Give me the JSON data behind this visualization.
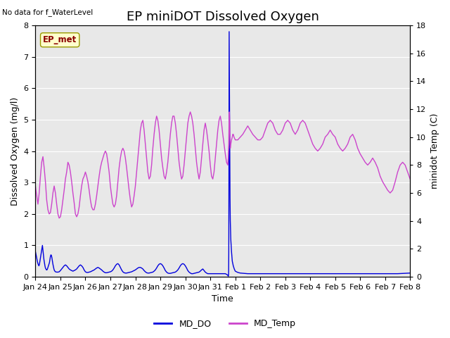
{
  "title": "EP miniDOT Dissolved Oxygen",
  "ylabel_left": "Dissolved Oxygen (mg/l)",
  "ylabel_right": "minidot Temp (C)",
  "xlabel": "Time",
  "ylim_left": [
    0,
    8.0
  ],
  "ylim_right": [
    0,
    18
  ],
  "yticks_left": [
    0.0,
    1.0,
    2.0,
    3.0,
    4.0,
    5.0,
    6.0,
    7.0,
    8.0
  ],
  "yticks_right": [
    0,
    2,
    4,
    6,
    8,
    10,
    12,
    14,
    16,
    18
  ],
  "annotation_text": "No data for f_WaterLevel",
  "box_label": "EP_met",
  "legend_entries": [
    "MD_DO",
    "MD_Temp"
  ],
  "do_color": "#0000dd",
  "temp_color": "#cc44cc",
  "background_color": "#e8e8e8",
  "do_linewidth": 1.0,
  "temp_linewidth": 1.0,
  "title_fontsize": 13,
  "axis_fontsize": 9,
  "tick_fontsize": 8,
  "x_start_days": 0,
  "x_end_days": 15.0,
  "xtick_labels": [
    "Jan 24",
    "Jan 25",
    "Jan 26",
    "Jan 27",
    "Jan 28",
    "Jan 29",
    "Jan 30",
    "Jan 31",
    "Feb 1",
    "Feb 2",
    "Feb 3",
    "Feb 4",
    "Feb 5",
    "Feb 6",
    "Feb 7",
    "Feb 8"
  ],
  "xtick_positions": [
    0,
    1,
    2,
    3,
    4,
    5,
    6,
    7,
    8,
    9,
    10,
    11,
    12,
    13,
    14,
    15
  ],
  "do_data": [
    [
      0.0,
      0.8
    ],
    [
      0.02,
      0.72
    ],
    [
      0.04,
      0.65
    ],
    [
      0.06,
      0.55
    ],
    [
      0.08,
      0.48
    ],
    [
      0.1,
      0.42
    ],
    [
      0.12,
      0.38
    ],
    [
      0.14,
      0.35
    ],
    [
      0.16,
      0.4
    ],
    [
      0.18,
      0.5
    ],
    [
      0.2,
      0.6
    ],
    [
      0.22,
      0.7
    ],
    [
      0.24,
      0.8
    ],
    [
      0.26,
      0.9
    ],
    [
      0.28,
      1.0
    ],
    [
      0.3,
      0.85
    ],
    [
      0.32,
      0.7
    ],
    [
      0.34,
      0.55
    ],
    [
      0.36,
      0.45
    ],
    [
      0.38,
      0.35
    ],
    [
      0.4,
      0.28
    ],
    [
      0.42,
      0.25
    ],
    [
      0.44,
      0.22
    ],
    [
      0.46,
      0.22
    ],
    [
      0.48,
      0.25
    ],
    [
      0.5,
      0.3
    ],
    [
      0.52,
      0.35
    ],
    [
      0.54,
      0.4
    ],
    [
      0.56,
      0.45
    ],
    [
      0.58,
      0.55
    ],
    [
      0.6,
      0.65
    ],
    [
      0.62,
      0.7
    ],
    [
      0.64,
      0.68
    ],
    [
      0.66,
      0.6
    ],
    [
      0.68,
      0.5
    ],
    [
      0.7,
      0.4
    ],
    [
      0.72,
      0.32
    ],
    [
      0.74,
      0.25
    ],
    [
      0.76,
      0.2
    ],
    [
      0.78,
      0.18
    ],
    [
      0.8,
      0.16
    ],
    [
      0.85,
      0.15
    ],
    [
      0.9,
      0.15
    ],
    [
      0.95,
      0.16
    ],
    [
      1.0,
      0.2
    ],
    [
      1.05,
      0.25
    ],
    [
      1.1,
      0.3
    ],
    [
      1.15,
      0.35
    ],
    [
      1.2,
      0.38
    ],
    [
      1.25,
      0.35
    ],
    [
      1.3,
      0.3
    ],
    [
      1.35,
      0.25
    ],
    [
      1.4,
      0.22
    ],
    [
      1.45,
      0.2
    ],
    [
      1.5,
      0.18
    ],
    [
      1.55,
      0.2
    ],
    [
      1.6,
      0.22
    ],
    [
      1.65,
      0.25
    ],
    [
      1.7,
      0.3
    ],
    [
      1.75,
      0.35
    ],
    [
      1.8,
      0.38
    ],
    [
      1.85,
      0.35
    ],
    [
      1.9,
      0.3
    ],
    [
      1.95,
      0.22
    ],
    [
      2.0,
      0.16
    ],
    [
      2.05,
      0.14
    ],
    [
      2.1,
      0.14
    ],
    [
      2.15,
      0.15
    ],
    [
      2.2,
      0.16
    ],
    [
      2.25,
      0.18
    ],
    [
      2.3,
      0.2
    ],
    [
      2.35,
      0.22
    ],
    [
      2.4,
      0.25
    ],
    [
      2.45,
      0.28
    ],
    [
      2.5,
      0.3
    ],
    [
      2.55,
      0.28
    ],
    [
      2.6,
      0.25
    ],
    [
      2.65,
      0.22
    ],
    [
      2.7,
      0.18
    ],
    [
      2.75,
      0.15
    ],
    [
      2.8,
      0.13
    ],
    [
      2.85,
      0.13
    ],
    [
      2.9,
      0.14
    ],
    [
      2.95,
      0.15
    ],
    [
      3.0,
      0.16
    ],
    [
      3.05,
      0.18
    ],
    [
      3.1,
      0.22
    ],
    [
      3.15,
      0.28
    ],
    [
      3.2,
      0.35
    ],
    [
      3.25,
      0.4
    ],
    [
      3.3,
      0.42
    ],
    [
      3.35,
      0.38
    ],
    [
      3.4,
      0.3
    ],
    [
      3.45,
      0.22
    ],
    [
      3.5,
      0.16
    ],
    [
      3.55,
      0.13
    ],
    [
      3.6,
      0.12
    ],
    [
      3.65,
      0.12
    ],
    [
      3.7,
      0.13
    ],
    [
      3.75,
      0.14
    ],
    [
      3.8,
      0.15
    ],
    [
      3.85,
      0.16
    ],
    [
      3.9,
      0.18
    ],
    [
      3.95,
      0.2
    ],
    [
      4.0,
      0.22
    ],
    [
      4.05,
      0.25
    ],
    [
      4.1,
      0.28
    ],
    [
      4.15,
      0.3
    ],
    [
      4.2,
      0.3
    ],
    [
      4.25,
      0.28
    ],
    [
      4.3,
      0.25
    ],
    [
      4.35,
      0.2
    ],
    [
      4.4,
      0.16
    ],
    [
      4.45,
      0.13
    ],
    [
      4.5,
      0.12
    ],
    [
      4.55,
      0.12
    ],
    [
      4.6,
      0.13
    ],
    [
      4.65,
      0.14
    ],
    [
      4.7,
      0.15
    ],
    [
      4.75,
      0.18
    ],
    [
      4.8,
      0.22
    ],
    [
      4.85,
      0.28
    ],
    [
      4.9,
      0.35
    ],
    [
      4.95,
      0.4
    ],
    [
      5.0,
      0.42
    ],
    [
      5.05,
      0.4
    ],
    [
      5.1,
      0.35
    ],
    [
      5.15,
      0.28
    ],
    [
      5.2,
      0.2
    ],
    [
      5.25,
      0.15
    ],
    [
      5.3,
      0.12
    ],
    [
      5.35,
      0.11
    ],
    [
      5.4,
      0.11
    ],
    [
      5.45,
      0.12
    ],
    [
      5.5,
      0.13
    ],
    [
      5.55,
      0.14
    ],
    [
      5.6,
      0.15
    ],
    [
      5.65,
      0.18
    ],
    [
      5.7,
      0.22
    ],
    [
      5.75,
      0.28
    ],
    [
      5.8,
      0.35
    ],
    [
      5.85,
      0.4
    ],
    [
      5.9,
      0.42
    ],
    [
      5.95,
      0.4
    ],
    [
      6.0,
      0.35
    ],
    [
      6.05,
      0.28
    ],
    [
      6.1,
      0.2
    ],
    [
      6.15,
      0.15
    ],
    [
      6.2,
      0.12
    ],
    [
      6.25,
      0.1
    ],
    [
      6.3,
      0.1
    ],
    [
      6.35,
      0.11
    ],
    [
      6.4,
      0.12
    ],
    [
      6.45,
      0.13
    ],
    [
      6.5,
      0.14
    ],
    [
      6.55,
      0.15
    ],
    [
      6.6,
      0.18
    ],
    [
      6.65,
      0.22
    ],
    [
      6.7,
      0.25
    ],
    [
      6.75,
      0.2
    ],
    [
      6.8,
      0.15
    ],
    [
      6.85,
      0.12
    ],
    [
      6.9,
      0.1
    ],
    [
      6.95,
      0.1
    ],
    [
      7.0,
      0.1
    ],
    [
      7.05,
      0.1
    ],
    [
      7.1,
      0.1
    ],
    [
      7.15,
      0.1
    ],
    [
      7.2,
      0.1
    ],
    [
      7.25,
      0.1
    ],
    [
      7.3,
      0.1
    ],
    [
      7.35,
      0.1
    ],
    [
      7.4,
      0.1
    ],
    [
      7.45,
      0.1
    ],
    [
      7.5,
      0.1
    ],
    [
      7.55,
      0.1
    ],
    [
      7.6,
      0.1
    ],
    [
      7.65,
      0.08
    ],
    [
      7.7,
      0.05
    ],
    [
      7.72,
      0.02
    ],
    [
      7.73,
      0.05
    ],
    [
      7.735,
      0.2
    ],
    [
      7.74,
      0.8
    ],
    [
      7.745,
      2.5
    ],
    [
      7.75,
      5.5
    ],
    [
      7.755,
      7.8
    ],
    [
      7.76,
      7.0
    ],
    [
      7.77,
      5.0
    ],
    [
      7.78,
      3.5
    ],
    [
      7.79,
      2.5
    ],
    [
      7.8,
      1.8
    ],
    [
      7.82,
      1.2
    ],
    [
      7.85,
      0.8
    ],
    [
      7.88,
      0.5
    ],
    [
      7.92,
      0.35
    ],
    [
      7.96,
      0.25
    ],
    [
      8.0,
      0.18
    ],
    [
      8.1,
      0.14
    ],
    [
      8.2,
      0.12
    ],
    [
      8.5,
      0.1
    ],
    [
      9.0,
      0.1
    ],
    [
      9.5,
      0.1
    ],
    [
      10.0,
      0.1
    ],
    [
      10.5,
      0.1
    ],
    [
      11.0,
      0.1
    ],
    [
      11.5,
      0.1
    ],
    [
      12.0,
      0.1
    ],
    [
      12.5,
      0.1
    ],
    [
      13.0,
      0.1
    ],
    [
      13.5,
      0.1
    ],
    [
      14.0,
      0.1
    ],
    [
      14.5,
      0.1
    ],
    [
      15.0,
      0.12
    ]
  ],
  "temp_data": [
    [
      0.0,
      6.5
    ],
    [
      0.05,
      5.8
    ],
    [
      0.1,
      5.2
    ],
    [
      0.15,
      6.0
    ],
    [
      0.2,
      7.2
    ],
    [
      0.25,
      8.2
    ],
    [
      0.3,
      8.6
    ],
    [
      0.35,
      7.8
    ],
    [
      0.4,
      6.8
    ],
    [
      0.45,
      5.5
    ],
    [
      0.5,
      4.8
    ],
    [
      0.55,
      4.5
    ],
    [
      0.6,
      4.6
    ],
    [
      0.65,
      5.2
    ],
    [
      0.7,
      6.0
    ],
    [
      0.75,
      6.5
    ],
    [
      0.8,
      6.0
    ],
    [
      0.85,
      5.2
    ],
    [
      0.9,
      4.5
    ],
    [
      0.95,
      4.2
    ],
    [
      1.0,
      4.3
    ],
    [
      1.05,
      4.8
    ],
    [
      1.1,
      5.5
    ],
    [
      1.15,
      6.2
    ],
    [
      1.2,
      7.0
    ],
    [
      1.25,
      7.5
    ],
    [
      1.3,
      8.2
    ],
    [
      1.35,
      8.0
    ],
    [
      1.4,
      7.5
    ],
    [
      1.45,
      6.8
    ],
    [
      1.5,
      6.0
    ],
    [
      1.55,
      5.3
    ],
    [
      1.6,
      4.5
    ],
    [
      1.65,
      4.3
    ],
    [
      1.7,
      4.5
    ],
    [
      1.75,
      5.0
    ],
    [
      1.8,
      5.8
    ],
    [
      1.85,
      6.5
    ],
    [
      1.9,
      7.0
    ],
    [
      1.95,
      7.2
    ],
    [
      2.0,
      7.5
    ],
    [
      2.05,
      7.2
    ],
    [
      2.1,
      6.8
    ],
    [
      2.15,
      6.2
    ],
    [
      2.2,
      5.5
    ],
    [
      2.25,
      5.0
    ],
    [
      2.3,
      4.8
    ],
    [
      2.35,
      4.8
    ],
    [
      2.4,
      5.2
    ],
    [
      2.45,
      5.8
    ],
    [
      2.5,
      6.5
    ],
    [
      2.55,
      7.2
    ],
    [
      2.6,
      7.8
    ],
    [
      2.65,
      8.2
    ],
    [
      2.7,
      8.5
    ],
    [
      2.75,
      8.8
    ],
    [
      2.8,
      9.0
    ],
    [
      2.85,
      8.8
    ],
    [
      2.9,
      8.2
    ],
    [
      2.95,
      7.5
    ],
    [
      3.0,
      6.5
    ],
    [
      3.05,
      5.8
    ],
    [
      3.1,
      5.2
    ],
    [
      3.15,
      5.0
    ],
    [
      3.2,
      5.2
    ],
    [
      3.25,
      5.8
    ],
    [
      3.3,
      6.8
    ],
    [
      3.35,
      7.8
    ],
    [
      3.4,
      8.5
    ],
    [
      3.45,
      9.0
    ],
    [
      3.5,
      9.2
    ],
    [
      3.55,
      9.0
    ],
    [
      3.6,
      8.5
    ],
    [
      3.65,
      7.8
    ],
    [
      3.7,
      7.0
    ],
    [
      3.75,
      6.2
    ],
    [
      3.8,
      5.5
    ],
    [
      3.85,
      5.0
    ],
    [
      3.9,
      5.2
    ],
    [
      3.95,
      5.8
    ],
    [
      4.0,
      6.5
    ],
    [
      4.05,
      7.5
    ],
    [
      4.1,
      8.5
    ],
    [
      4.15,
      9.5
    ],
    [
      4.2,
      10.5
    ],
    [
      4.25,
      11.0
    ],
    [
      4.3,
      11.2
    ],
    [
      4.35,
      10.5
    ],
    [
      4.4,
      9.5
    ],
    [
      4.45,
      8.5
    ],
    [
      4.5,
      7.5
    ],
    [
      4.55,
      7.0
    ],
    [
      4.6,
      7.2
    ],
    [
      4.65,
      8.0
    ],
    [
      4.7,
      9.2
    ],
    [
      4.75,
      10.2
    ],
    [
      4.8,
      11.0
    ],
    [
      4.85,
      11.5
    ],
    [
      4.9,
      11.2
    ],
    [
      4.95,
      10.5
    ],
    [
      5.0,
      9.5
    ],
    [
      5.05,
      8.5
    ],
    [
      5.1,
      7.8
    ],
    [
      5.15,
      7.2
    ],
    [
      5.2,
      7.0
    ],
    [
      5.25,
      7.5
    ],
    [
      5.3,
      8.2
    ],
    [
      5.35,
      9.2
    ],
    [
      5.4,
      10.2
    ],
    [
      5.45,
      11.0
    ],
    [
      5.5,
      11.5
    ],
    [
      5.55,
      11.5
    ],
    [
      5.6,
      11.0
    ],
    [
      5.65,
      10.2
    ],
    [
      5.7,
      9.2
    ],
    [
      5.75,
      8.2
    ],
    [
      5.8,
      7.5
    ],
    [
      5.85,
      7.0
    ],
    [
      5.9,
      7.2
    ],
    [
      5.95,
      8.0
    ],
    [
      6.0,
      9.0
    ],
    [
      6.05,
      10.0
    ],
    [
      6.1,
      11.0
    ],
    [
      6.15,
      11.5
    ],
    [
      6.2,
      11.8
    ],
    [
      6.25,
      11.5
    ],
    [
      6.3,
      11.0
    ],
    [
      6.35,
      10.2
    ],
    [
      6.4,
      9.2
    ],
    [
      6.45,
      8.2
    ],
    [
      6.5,
      7.5
    ],
    [
      6.55,
      7.0
    ],
    [
      6.6,
      7.5
    ],
    [
      6.65,
      8.5
    ],
    [
      6.7,
      9.5
    ],
    [
      6.75,
      10.5
    ],
    [
      6.8,
      11.0
    ],
    [
      6.85,
      10.5
    ],
    [
      6.9,
      9.8
    ],
    [
      6.95,
      9.0
    ],
    [
      7.0,
      8.0
    ],
    [
      7.05,
      7.2
    ],
    [
      7.1,
      7.0
    ],
    [
      7.15,
      7.5
    ],
    [
      7.2,
      8.5
    ],
    [
      7.25,
      9.5
    ],
    [
      7.3,
      10.5
    ],
    [
      7.35,
      11.2
    ],
    [
      7.4,
      11.5
    ],
    [
      7.45,
      11.0
    ],
    [
      7.5,
      10.2
    ],
    [
      7.55,
      9.5
    ],
    [
      7.6,
      8.8
    ],
    [
      7.65,
      8.2
    ],
    [
      7.7,
      8.0
    ],
    [
      7.72,
      8.5
    ],
    [
      7.74,
      9.5
    ],
    [
      7.75,
      11.0
    ],
    [
      7.76,
      11.5
    ],
    [
      7.765,
      11.8
    ],
    [
      7.77,
      11.5
    ],
    [
      7.775,
      11.0
    ],
    [
      7.78,
      10.5
    ],
    [
      7.79,
      9.8
    ],
    [
      7.8,
      9.2
    ],
    [
      7.82,
      9.5
    ],
    [
      7.85,
      9.8
    ],
    [
      7.88,
      10.0
    ],
    [
      7.9,
      10.2
    ],
    [
      7.92,
      10.2
    ],
    [
      7.95,
      10.0
    ],
    [
      8.0,
      9.8
    ],
    [
      8.1,
      9.8
    ],
    [
      8.2,
      10.0
    ],
    [
      8.3,
      10.2
    ],
    [
      8.4,
      10.5
    ],
    [
      8.5,
      10.8
    ],
    [
      8.6,
      10.5
    ],
    [
      8.7,
      10.2
    ],
    [
      8.8,
      10.0
    ],
    [
      8.9,
      9.8
    ],
    [
      9.0,
      9.8
    ],
    [
      9.1,
      10.0
    ],
    [
      9.2,
      10.5
    ],
    [
      9.3,
      11.0
    ],
    [
      9.4,
      11.2
    ],
    [
      9.5,
      11.0
    ],
    [
      9.6,
      10.5
    ],
    [
      9.7,
      10.2
    ],
    [
      9.8,
      10.2
    ],
    [
      9.9,
      10.5
    ],
    [
      10.0,
      11.0
    ],
    [
      10.1,
      11.2
    ],
    [
      10.2,
      11.0
    ],
    [
      10.3,
      10.5
    ],
    [
      10.4,
      10.2
    ],
    [
      10.5,
      10.5
    ],
    [
      10.6,
      11.0
    ],
    [
      10.7,
      11.2
    ],
    [
      10.8,
      11.0
    ],
    [
      10.9,
      10.5
    ],
    [
      11.0,
      10.0
    ],
    [
      11.1,
      9.5
    ],
    [
      11.2,
      9.2
    ],
    [
      11.3,
      9.0
    ],
    [
      11.4,
      9.2
    ],
    [
      11.5,
      9.5
    ],
    [
      11.6,
      10.0
    ],
    [
      11.7,
      10.2
    ],
    [
      11.8,
      10.5
    ],
    [
      11.9,
      10.2
    ],
    [
      12.0,
      10.0
    ],
    [
      12.1,
      9.5
    ],
    [
      12.2,
      9.2
    ],
    [
      12.3,
      9.0
    ],
    [
      12.4,
      9.2
    ],
    [
      12.5,
      9.5
    ],
    [
      12.6,
      10.0
    ],
    [
      12.7,
      10.2
    ],
    [
      12.8,
      9.8
    ],
    [
      12.9,
      9.2
    ],
    [
      13.0,
      8.8
    ],
    [
      13.1,
      8.5
    ],
    [
      13.2,
      8.2
    ],
    [
      13.3,
      8.0
    ],
    [
      13.4,
      8.2
    ],
    [
      13.5,
      8.5
    ],
    [
      13.6,
      8.2
    ],
    [
      13.7,
      7.8
    ],
    [
      13.8,
      7.2
    ],
    [
      13.9,
      6.8
    ],
    [
      14.0,
      6.5
    ],
    [
      14.1,
      6.2
    ],
    [
      14.2,
      6.0
    ],
    [
      14.3,
      6.2
    ],
    [
      14.4,
      6.8
    ],
    [
      14.5,
      7.5
    ],
    [
      14.6,
      8.0
    ],
    [
      14.7,
      8.2
    ],
    [
      14.8,
      8.0
    ],
    [
      14.9,
      7.5
    ],
    [
      15.0,
      7.0
    ]
  ]
}
